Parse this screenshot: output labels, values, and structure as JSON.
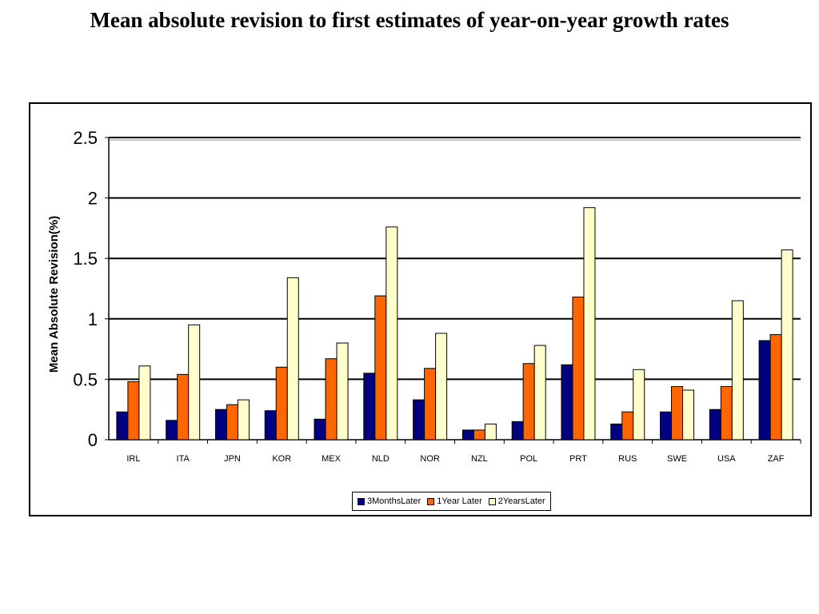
{
  "title": "Mean absolute revision to first estimates of year-on-year growth rates",
  "chart_data": {
    "type": "bar",
    "title": "",
    "xlabel": "",
    "ylabel": "Mean Absolute Revision(%)",
    "ylim": [
      0,
      2.5
    ],
    "yticks": [
      "0",
      "0.5",
      "1",
      "1.5",
      "2",
      "2.5"
    ],
    "grid": true,
    "legend_position": "bottom",
    "categories": [
      "IRL",
      "ITA",
      "JPN",
      "KOR",
      "MEX",
      "NLD",
      "NOR",
      "NZL",
      "POL",
      "PRT",
      "RUS",
      "SWE",
      "USA",
      "ZAF"
    ],
    "series": [
      {
        "name": "3MonthsLater",
        "color": "#000080",
        "values": [
          0.23,
          0.16,
          0.25,
          0.24,
          0.17,
          0.55,
          0.33,
          0.08,
          0.15,
          0.62,
          0.13,
          0.23,
          0.25,
          0.82
        ]
      },
      {
        "name": "1Year Later",
        "color": "#ff6600",
        "values": [
          0.48,
          0.54,
          0.29,
          0.6,
          0.67,
          1.19,
          0.59,
          0.08,
          0.63,
          1.18,
          0.23,
          0.44,
          0.44,
          0.87
        ]
      },
      {
        "name": "2YearsLater",
        "color": "#ffffcc",
        "values": [
          0.61,
          0.95,
          0.33,
          1.34,
          0.8,
          1.76,
          0.88,
          0.13,
          0.78,
          1.92,
          0.58,
          0.41,
          1.15,
          1.57
        ]
      }
    ]
  }
}
